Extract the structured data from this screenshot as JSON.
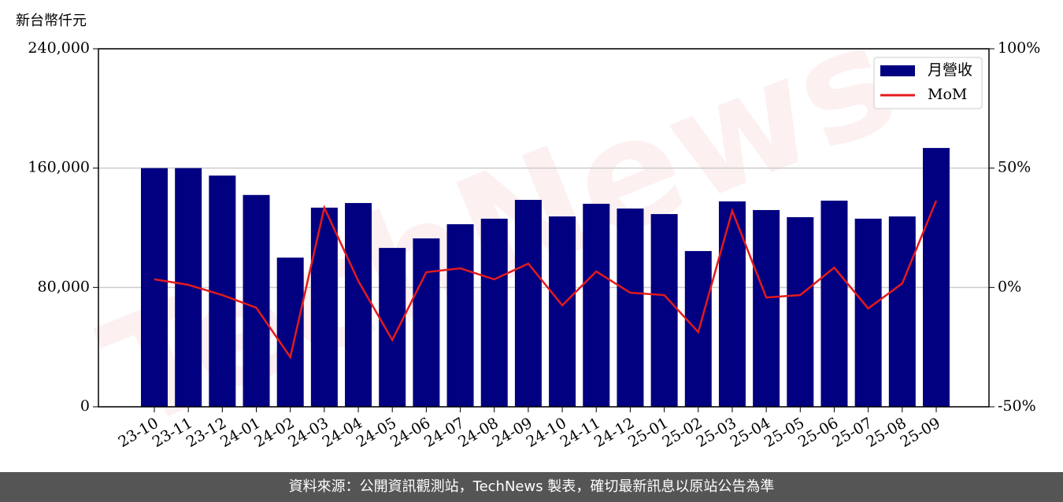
{
  "chart_data": {
    "type": "bar",
    "y_label": "新台幣仟元",
    "watermark": "TechNews",
    "categories": [
      "23-10",
      "23-11",
      "23-12",
      "24-01",
      "24-02",
      "24-03",
      "24-04",
      "24-05",
      "24-06",
      "24-07",
      "24-08",
      "24-09",
      "24-10",
      "24-11",
      "24-12",
      "25-01",
      "25-02",
      "25-03",
      "25-04",
      "25-05",
      "25-06",
      "25-07",
      "25-08",
      "25-09"
    ],
    "series": [
      {
        "name": "月營收",
        "type": "bar",
        "color": "#000080",
        "values": [
          160000,
          160000,
          155000,
          142000,
          100000,
          133500,
          136600,
          106500,
          112900,
          122400,
          126100,
          138700,
          127600,
          136100,
          132900,
          129200,
          104400,
          137700,
          131900,
          127100,
          138200,
          126100,
          127600,
          173500
        ]
      },
      {
        "name": "MoM",
        "type": "line",
        "axis": "y2",
        "color": "#e31a1c",
        "values": [
          3.4,
          1.1,
          -3.2,
          -8.5,
          -29.2,
          33.4,
          2.7,
          -22,
          6.4,
          8,
          3.4,
          10,
          -7.5,
          6.7,
          -2.2,
          -3.2,
          -18.7,
          32.1,
          -4.2,
          -3.2,
          8.3,
          -8.8,
          1.7,
          36.4
        ]
      }
    ],
    "ylim": [
      0,
      240000
    ],
    "yticks": [
      0,
      {
        "value": 80000,
        "label": "80,000"
      },
      {
        "value": 160000,
        "label": "160,000"
      },
      {
        "value": 240000,
        "label": "240,000"
      }
    ],
    "y2lim": [
      -50,
      100
    ],
    "y2ticks": [
      {
        "value": -50,
        "label": "-50%"
      },
      {
        "value": 0,
        "label": "0%"
      },
      {
        "value": 50,
        "label": "50%"
      },
      {
        "value": 100,
        "label": "100%"
      }
    ],
    "grid": true,
    "legend": "upper right"
  },
  "footer": "資料來源：公開資訊觀測站，TechNews 製表，確切最新訊息以原站公告為準"
}
